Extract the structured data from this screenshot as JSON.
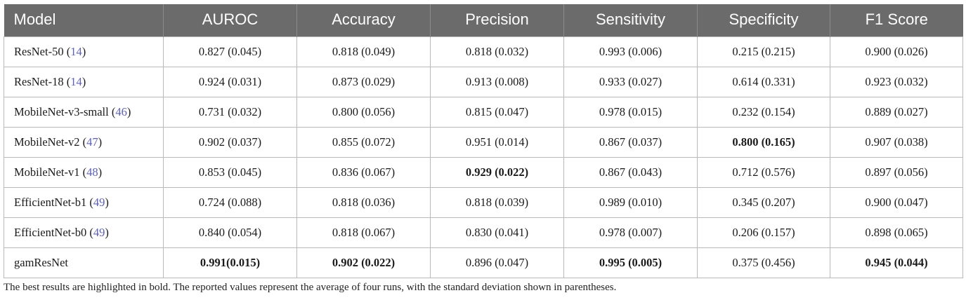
{
  "table": {
    "headers": [
      "Model",
      "AUROC",
      "Accuracy",
      "Precision",
      "Sensitivity",
      "Specificity",
      "F1 Score"
    ],
    "rows": [
      {
        "model": "ResNet-50",
        "ref": "14",
        "values": [
          "0.827 (0.045)",
          "0.818 (0.049)",
          "0.818 (0.032)",
          "0.993 (0.006)",
          "0.215 (0.215)",
          "0.900 (0.026)"
        ]
      },
      {
        "model": "ResNet-18",
        "ref": "14",
        "values": [
          "0.924 (0.031)",
          "0.873 (0.029)",
          "0.913 (0.008)",
          "0.933 (0.027)",
          "0.614 (0.331)",
          "0.923 (0.032)"
        ]
      },
      {
        "model": "MobileNet-v3-small",
        "ref": "46",
        "values": [
          "0.731 (0.032)",
          "0.800 (0.056)",
          "0.815 (0.047)",
          "0.978 (0.015)",
          "0.232 (0.154)",
          "0.889 (0.027)"
        ]
      },
      {
        "model": "MobileNet-v2",
        "ref": "47",
        "values": [
          "0.902 (0.037)",
          "0.855 (0.072)",
          "0.951 (0.014)",
          "0.867 (0.037)",
          "0.800 (0.165)",
          "0.907 (0.038)"
        ]
      },
      {
        "model": "MobileNet-v1",
        "ref": "48",
        "values": [
          "0.853 (0.045)",
          "0.836 (0.067)",
          "0.929 (0.022)",
          "0.867 (0.043)",
          "0.712 (0.576)",
          "0.897 (0.056)"
        ]
      },
      {
        "model": "EfficientNet-b1",
        "ref": "49",
        "values": [
          "0.724 (0.088)",
          "0.818 (0.036)",
          "0.818 (0.039)",
          "0.989 (0.010)",
          "0.345 (0.207)",
          "0.900 (0.047)"
        ]
      },
      {
        "model": "EfficientNet-b0",
        "ref": "49",
        "values": [
          "0.840 (0.054)",
          "0.818 (0.067)",
          "0.830 (0.041)",
          "0.978 (0.007)",
          "0.206 (0.157)",
          "0.898 (0.065)"
        ]
      },
      {
        "model": "gamResNet",
        "ref": "",
        "values": [
          "0.991(0.015)",
          "0.902 (0.022)",
          "0.896 (0.047)",
          "0.995 (0.005)",
          "0.375 (0.456)",
          "0.945 (0.044)"
        ]
      }
    ]
  },
  "footnote": "The best results are highlighted in bold. The reported values represent the average of four runs, with the standard deviation shown in parentheses."
}
